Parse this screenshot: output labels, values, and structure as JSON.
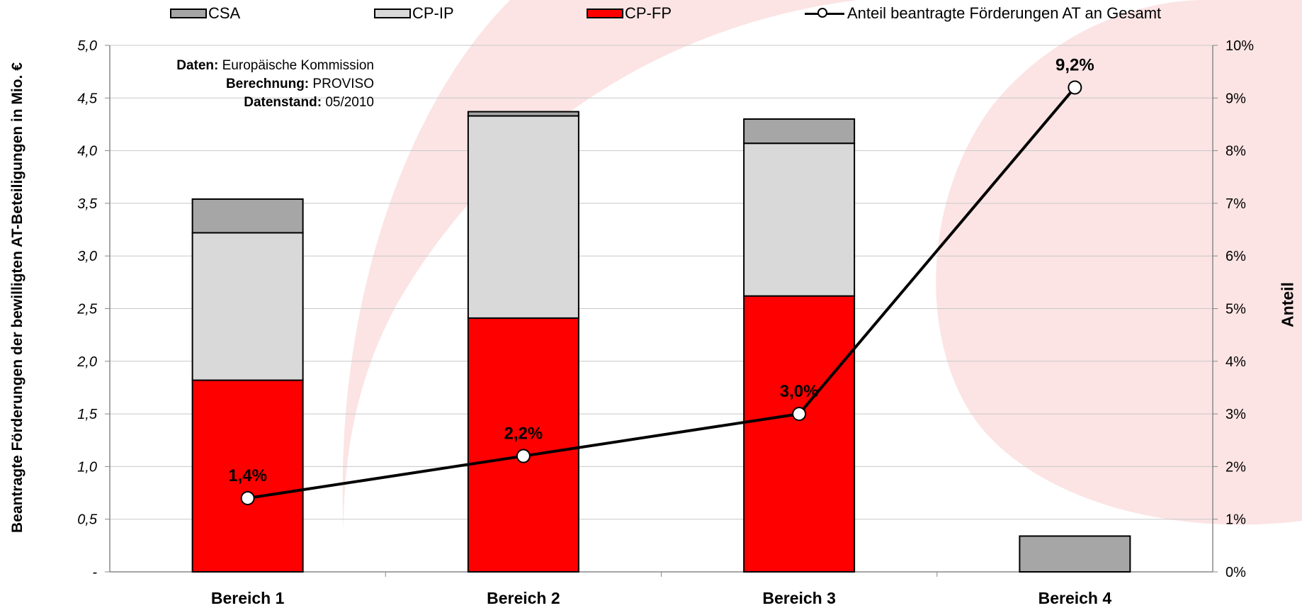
{
  "legend": {
    "csa": "CSA",
    "cpip": "CP-IP",
    "cpfp": "CP-FP",
    "line": "Anteil beantragte Förderungen AT an Gesamt"
  },
  "source": {
    "data_label": "Daten:",
    "data_value": "Europäische Kommission",
    "calc_label": "Berechnung:",
    "calc_value": "PROVISO",
    "date_label": "Datenstand:",
    "date_value": "05/2010"
  },
  "colors": {
    "csa": "#a6a6a6",
    "cpip": "#d9d9d9",
    "cpfp": "#ff0000",
    "line": "#000000",
    "data_label": "#000000",
    "background_shape": "#fce4e4"
  },
  "chart_data": {
    "type": "bar",
    "stacked": true,
    "categories": [
      "Bereich 1",
      "Bereich 2",
      "Bereich 3",
      "Bereich 4"
    ],
    "series": [
      {
        "name": "CP-FP",
        "values": [
          1.82,
          2.41,
          2.62,
          0
        ]
      },
      {
        "name": "CP-IP",
        "values": [
          1.4,
          1.92,
          1.45,
          0
        ]
      },
      {
        "name": "CSA",
        "values": [
          0.32,
          0.04,
          0.23,
          0.34
        ]
      }
    ],
    "line_series": {
      "name": "Anteil beantragte Förderungen AT an Gesamt",
      "axis": "secondary",
      "values": [
        1.4,
        2.2,
        3.0,
        9.2
      ],
      "labels": [
        "1,4%",
        "2,2%",
        "3,0%",
        "9,2%"
      ]
    },
    "ylabel": "Beantragte Förderungen der bewilligten AT-Beteiligungen in Mio. €",
    "y2label": "Anteil",
    "ylim": [
      0,
      5
    ],
    "y2lim": [
      0,
      10
    ],
    "yticks": [
      "-",
      "0,5",
      "1,0",
      "1,5",
      "2,0",
      "2,5",
      "3,0",
      "3,5",
      "4,0",
      "4,5",
      "5,0"
    ],
    "y2ticks": [
      "0%",
      "1%",
      "2%",
      "3%",
      "4%",
      "5%",
      "6%",
      "7%",
      "8%",
      "9%",
      "10%"
    ],
    "grid": true,
    "legend_position": "top"
  }
}
